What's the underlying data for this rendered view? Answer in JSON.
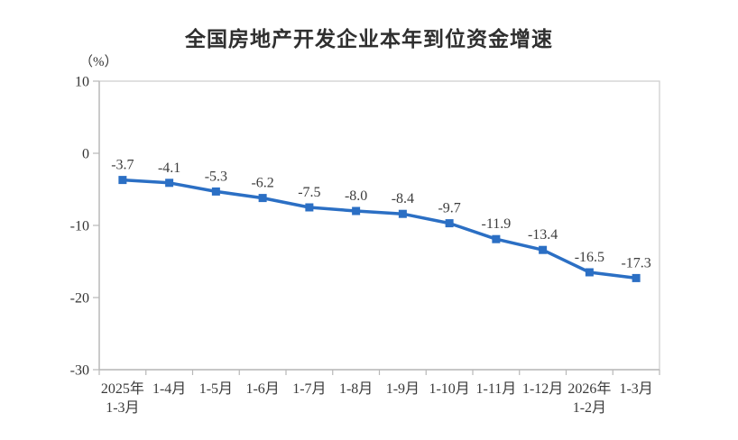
{
  "page": {
    "background": "#ffffff"
  },
  "chart_data": {
    "type": "line",
    "title": "全国房地产开发企业本年到位资金增速",
    "unit_label": "（%）",
    "categories": [
      [
        "2025年",
        "1-3月"
      ],
      [
        "1-4月"
      ],
      [
        "1-5月"
      ],
      [
        "1-6月"
      ],
      [
        "1-7月"
      ],
      [
        "1-8月"
      ],
      [
        "1-9月"
      ],
      [
        "1-10月"
      ],
      [
        "1-11月"
      ],
      [
        "1-12月"
      ],
      [
        "2026年",
        "1-2月"
      ],
      [
        "1-3月"
      ]
    ],
    "values": [
      -3.7,
      -4.1,
      -5.3,
      -6.2,
      -7.5,
      -8.0,
      -8.4,
      -9.7,
      -11.9,
      -13.4,
      -16.5,
      -17.3
    ],
    "data_labels": [
      "-3.7",
      "-4.1",
      "-5.3",
      "-6.2",
      "-7.5",
      "-8.0",
      "-8.4",
      "-9.7",
      "-11.9",
      "-13.4",
      "-16.5",
      "-17.3"
    ],
    "yticks": [
      10,
      0,
      -10,
      -20,
      -30
    ],
    "ylim": [
      -30,
      10
    ],
    "xlabel": "",
    "ylabel": "（%）",
    "grid": false,
    "legend": "none",
    "marker": "square",
    "line_color": "#2b6fc4",
    "label_color": "#3d3d3d",
    "axis_color": "#b8b8b8",
    "border_color": "#cccccc"
  }
}
